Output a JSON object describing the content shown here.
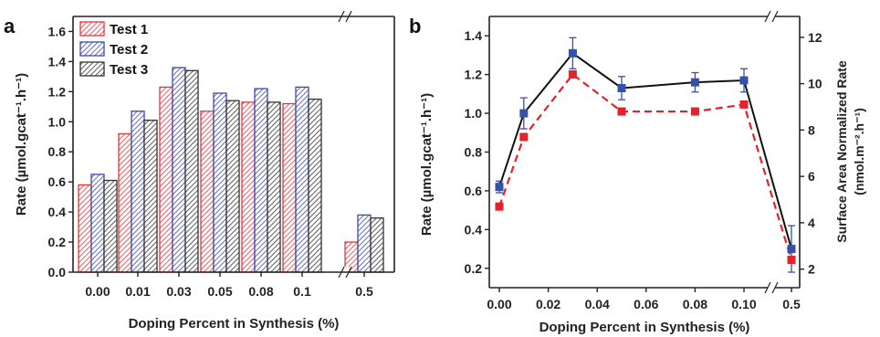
{
  "colors": {
    "test1": "#e8333b",
    "test2": "#3a4aa8",
    "test3": "#333333",
    "line_rate": "#111111",
    "line_norm": "#e3222a",
    "marker_rate": "#3552a8",
    "marker_norm": "#e3222a"
  },
  "chart_data": [
    {
      "panel_label": "a",
      "type": "bar",
      "xlabel": "Doping Percent in Synthesis (%)",
      "ylabel": "Rate (µmol.gcat⁻¹.h⁻¹)",
      "categories": [
        "0.00",
        "0.01",
        "0.03",
        "0.05",
        "0.08",
        "0.1",
        "0.5"
      ],
      "ylim": [
        0,
        1.7
      ],
      "yticks": [
        "0.0",
        "0.2",
        "0.4",
        "0.6",
        "0.8",
        "1.0",
        "1.2",
        "1.4",
        "1.6"
      ],
      "axis_break": "between 0.1 and 0.5",
      "legend_position": "top-left",
      "series": [
        {
          "name": "Test 1",
          "values": [
            0.58,
            0.92,
            1.23,
            1.07,
            1.13,
            1.12,
            0.2
          ]
        },
        {
          "name": "Test 2",
          "values": [
            0.65,
            1.07,
            1.36,
            1.19,
            1.22,
            1.23,
            0.38
          ]
        },
        {
          "name": "Test 3",
          "values": [
            0.61,
            1.01,
            1.34,
            1.14,
            1.13,
            1.15,
            0.36
          ]
        }
      ]
    },
    {
      "panel_label": "b",
      "type": "line",
      "xlabel": "Doping Percent in Synthesis (%)",
      "ylabel_left": "Rate (µmol.gcat⁻¹.h⁻¹)",
      "ylabel_right": "Surface Area Normalized Rate (nmol.m⁻².h⁻¹)",
      "x_tick_labels": [
        "0.00",
        "0.02",
        "0.04",
        "0.06",
        "0.08",
        "0.10",
        "0.5"
      ],
      "axis_break": "between 0.10 and 0.5",
      "ylim_left": [
        0.1,
        1.5
      ],
      "yticks_left": [
        "0.2",
        "0.4",
        "0.6",
        "0.8",
        "1.0",
        "1.2",
        "1.4"
      ],
      "ylim_right": [
        1.2,
        12.9
      ],
      "yticks_right": [
        "2",
        "4",
        "6",
        "8",
        "10",
        "12"
      ],
      "x": [
        0.0,
        0.01,
        0.03,
        0.05,
        0.08,
        0.1,
        0.5
      ],
      "series": [
        {
          "axis": "left",
          "style": "solid",
          "values": [
            0.62,
            1.0,
            1.31,
            1.13,
            1.16,
            1.17,
            0.3
          ],
          "errors": [
            0.03,
            0.08,
            0.08,
            0.06,
            0.05,
            0.06,
            0.12
          ]
        },
        {
          "axis": "right",
          "style": "dashed",
          "values": [
            4.7,
            7.7,
            10.4,
            8.8,
            8.8,
            9.1,
            2.4
          ]
        }
      ]
    }
  ]
}
